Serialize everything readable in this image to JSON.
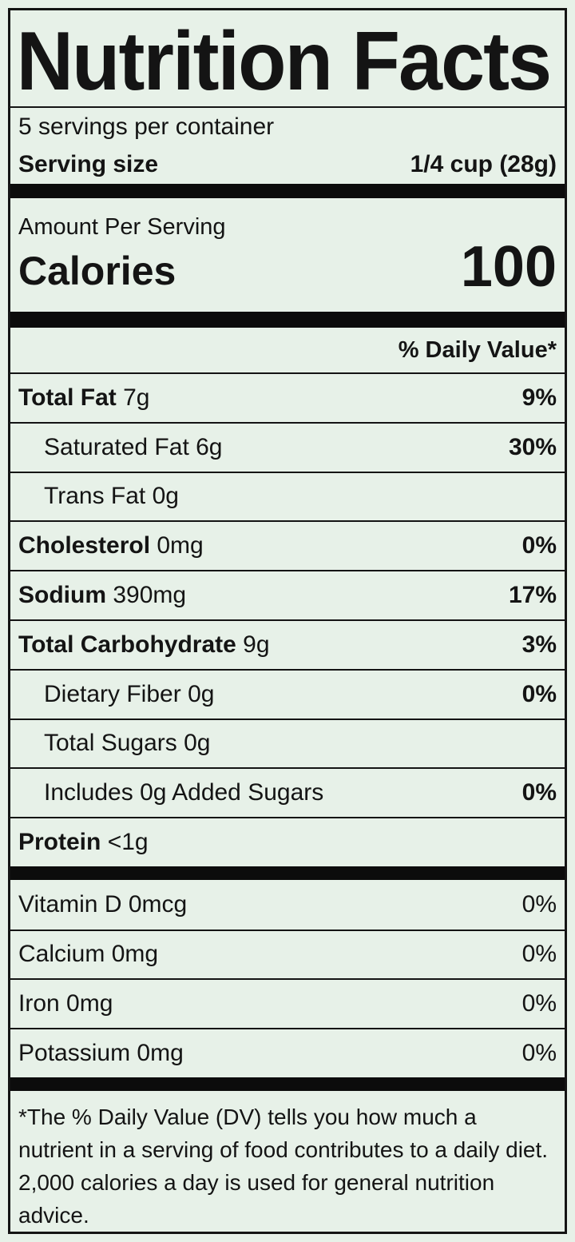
{
  "label": {
    "title": "Nutrition Facts",
    "servings_per_container": "5 servings per container",
    "serving_size": {
      "label": "Serving size",
      "value": "1/4 cup (28g)"
    },
    "calories_section": {
      "amount_per_serving": "Amount Per Serving",
      "calories_label": "Calories",
      "calories_value": "100"
    },
    "daily_value_header": "% Daily Value*",
    "nutrients": [
      {
        "name": "Total Fat",
        "amount": "7g",
        "dv": "9%"
      },
      {
        "name": "Saturated Fat",
        "amount": "6g",
        "dv": "30%"
      },
      {
        "name": "Trans Fat",
        "amount": "0g",
        "dv": ""
      },
      {
        "name": "Cholesterol",
        "amount": "0mg",
        "dv": "0%"
      },
      {
        "name": "Sodium",
        "amount": "390mg",
        "dv": "17%"
      },
      {
        "name": "Total Carbohydrate",
        "amount": "9g",
        "dv": "3%"
      },
      {
        "name": "Dietary Fiber",
        "amount": "0g",
        "dv": "0%"
      },
      {
        "name": "Total Sugars",
        "amount": "0g",
        "dv": ""
      },
      {
        "name": "Includes 0g Added Sugars",
        "amount": "",
        "dv": "0%"
      },
      {
        "name": "Protein",
        "amount": "<1g",
        "dv": ""
      }
    ],
    "micronutrients": [
      {
        "name": "Vitamin D",
        "amount": "0mcg",
        "dv": "0%"
      },
      {
        "name": "Calcium",
        "amount": "0mg",
        "dv": "0%"
      },
      {
        "name": "Iron",
        "amount": "0mg",
        "dv": "0%"
      },
      {
        "name": "Potassium",
        "amount": "0mg",
        "dv": "0%"
      }
    ],
    "footnote": "*The % Daily Value (DV) tells you how much a nutrient in a serving of food contributes to a daily diet. 2,000 calories a day is used for general nutrition advice.",
    "colors": {
      "background": "#e7f1e8",
      "text": "#141414",
      "bar": "#0c0c0c"
    }
  }
}
